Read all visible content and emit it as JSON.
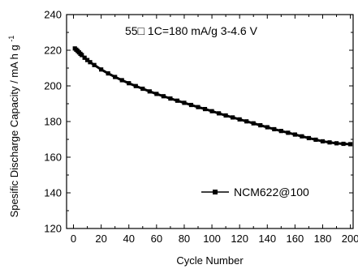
{
  "chart_data": {
    "type": "line",
    "title": "",
    "annotation": "55□   1C=180 mA/g  3-4.6 V",
    "xlabel": "Cycle Number",
    "ylabel": "Spesific Discharge Capacity / mA h g",
    "ylabel_superscript": "-1",
    "xlim": [
      -5,
      202
    ],
    "ylim": [
      120,
      240
    ],
    "xticks": [
      0,
      20,
      40,
      60,
      80,
      100,
      120,
      140,
      160,
      180,
      200
    ],
    "yticks": [
      120,
      140,
      160,
      180,
      200,
      220,
      240
    ],
    "grid": false,
    "legend_position": "lower-right",
    "series": [
      {
        "name": "NCM622@100",
        "color": "#000000",
        "marker": "square",
        "x": [
          1,
          2,
          3,
          4,
          5,
          6,
          8,
          10,
          12,
          15,
          20,
          25,
          30,
          35,
          40,
          45,
          50,
          55,
          60,
          65,
          70,
          75,
          80,
          85,
          90,
          95,
          100,
          105,
          110,
          115,
          120,
          125,
          130,
          135,
          140,
          145,
          150,
          155,
          160,
          165,
          170,
          175,
          180,
          185,
          190,
          195,
          200
        ],
        "y": [
          221.0,
          220.3,
          219.6,
          218.8,
          218.0,
          217.3,
          215.8,
          214.5,
          213.3,
          211.7,
          209.2,
          207.0,
          205.0,
          203.2,
          201.5,
          199.9,
          198.4,
          196.9,
          195.5,
          194.2,
          192.9,
          191.7,
          190.5,
          189.3,
          188.1,
          187.0,
          185.8,
          184.6,
          183.4,
          182.3,
          181.2,
          180.1,
          179.0,
          177.9,
          176.8,
          175.7,
          174.7,
          173.7,
          172.7,
          171.7,
          170.7,
          169.8,
          168.9,
          168.3,
          167.8,
          167.5,
          167.3
        ]
      }
    ]
  }
}
